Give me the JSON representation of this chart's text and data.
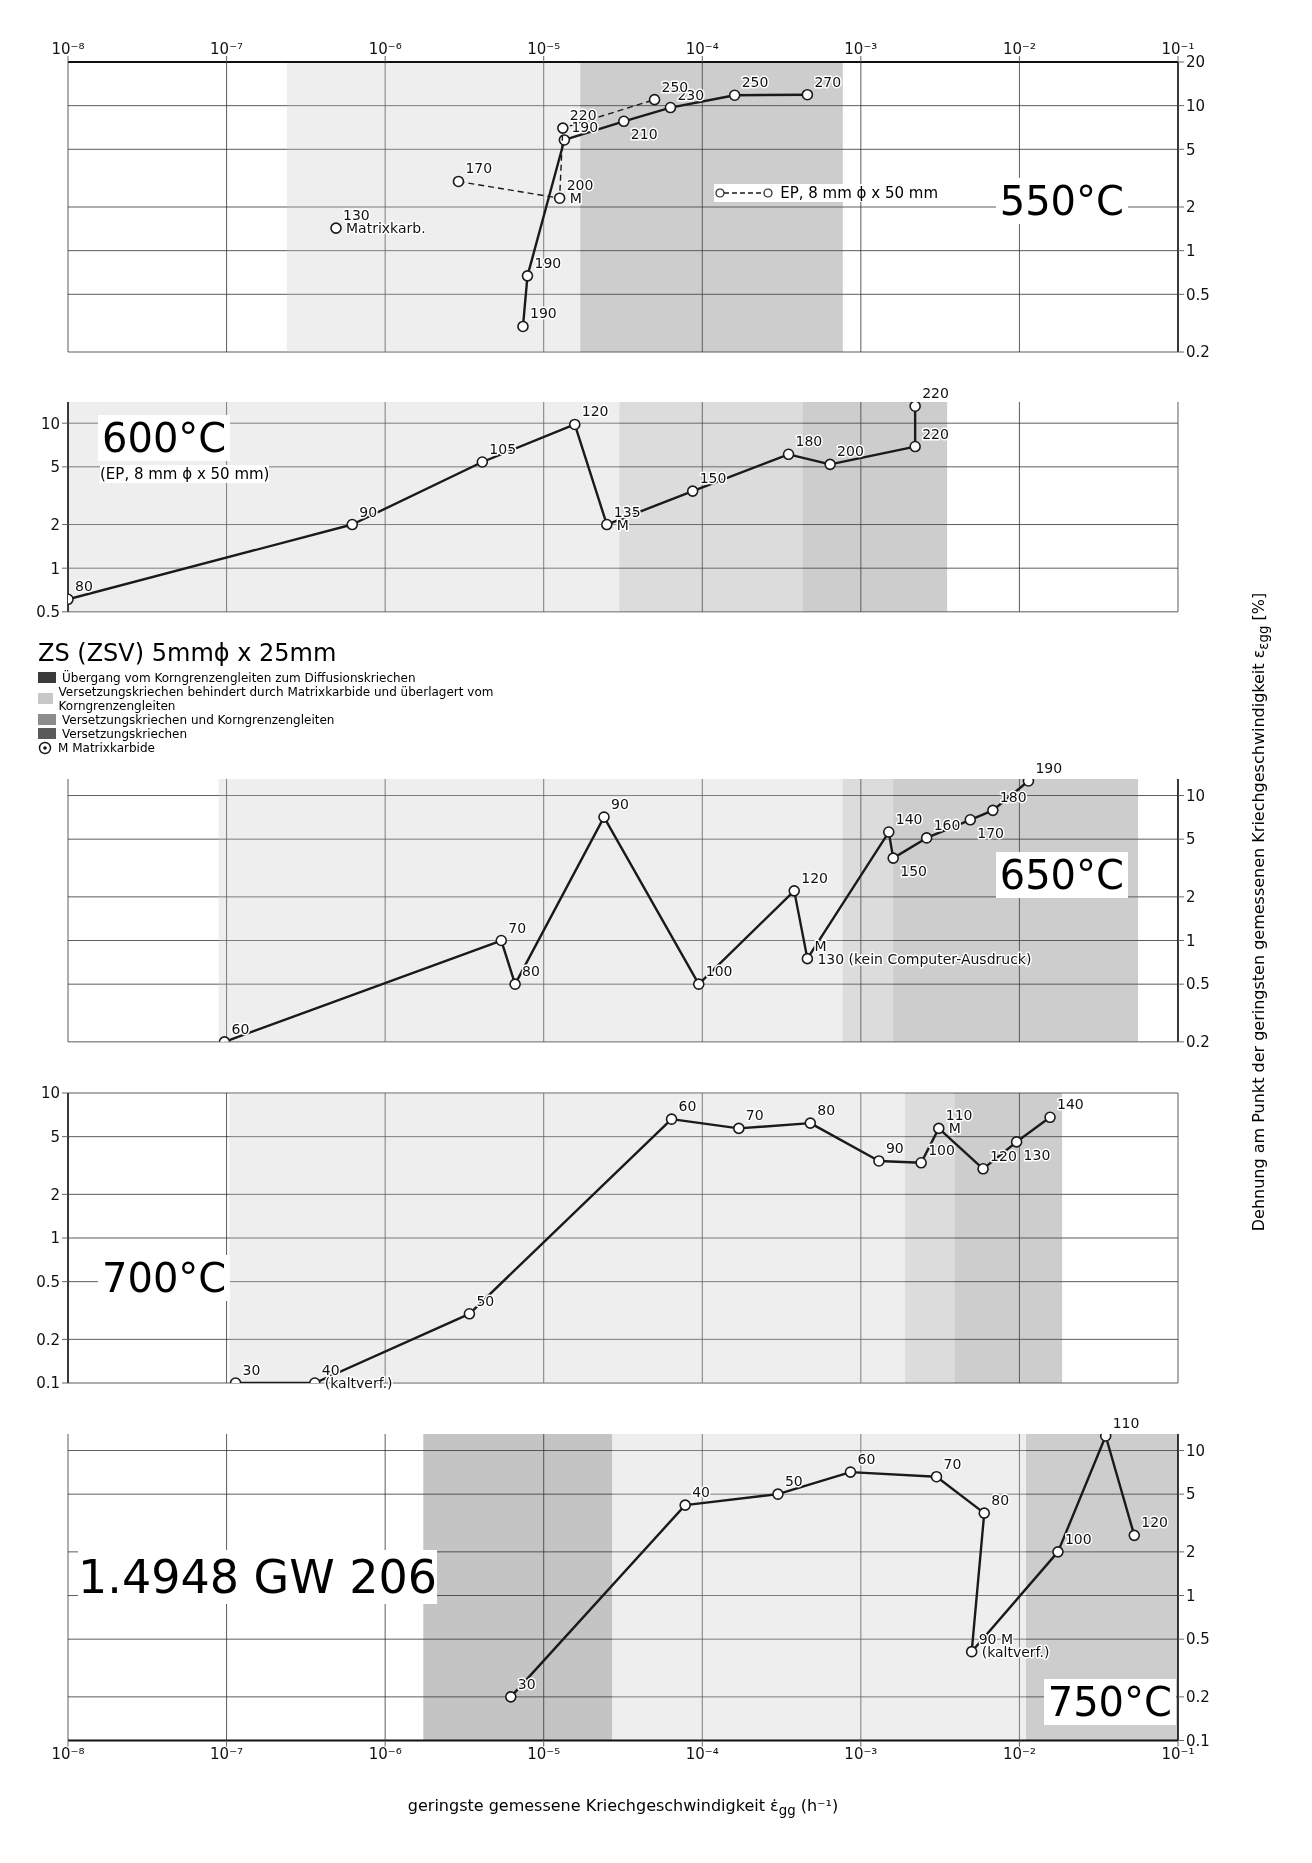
{
  "chart_data": [
    {
      "type": "line",
      "title": "550°C",
      "legend": "right",
      "marker": "circle",
      "grid": true,
      "log": "xy",
      "xlim": [
        1e-08,
        0.1
      ],
      "xticks": [
        {
          "value": 1e-08,
          "label": "10⁻⁸"
        },
        {
          "value": 1e-07,
          "label": "10⁻⁷"
        },
        {
          "value": 1e-06,
          "label": "10⁻⁶"
        },
        {
          "value": 1e-05,
          "label": "10⁻⁵"
        },
        {
          "value": 0.0001,
          "label": "10⁻⁴"
        },
        {
          "value": 0.001,
          "label": "10⁻³"
        },
        {
          "value": 0.01,
          "label": "10⁻²"
        },
        {
          "value": 0.1,
          "label": "10⁻¹"
        }
      ],
      "ylim": [
        0.2,
        20
      ],
      "yticks": [
        0.2,
        0.5,
        1,
        2,
        5,
        10,
        20
      ],
      "series": [
        {
          "color": "#1a1a1a",
          "x": [
            4.9e-07
          ],
          "values": [
            1.43
          ]
        },
        {
          "color": "#1a1a1a",
          "x": [
            7.4e-06,
            7.9e-06,
            1.35e-05,
            3.2e-05,
            6.3e-05,
            0.00016,
            0.00046
          ],
          "values": [
            0.3,
            0.67,
            5.8,
            7.8,
            9.7,
            11.8,
            11.9
          ]
        },
        {
          "name": "EP, 8 mm ϕ x 50 mm",
          "color": "#1a1a1a",
          "line_style": "dashed",
          "x": [
            2.9e-06,
            1.26e-05,
            1.32e-05,
            5e-05
          ],
          "values": [
            3.0,
            2.3,
            7.0,
            11
          ]
        }
      ],
      "bands": [
        {
          "axis": "x",
          "from": 2.4e-07,
          "to": 1.7e-05,
          "color": "#c8c8c8"
        },
        {
          "axis": "x",
          "from": 1.7e-05,
          "to": 0.00077,
          "color": "#5a5a5a"
        }
      ],
      "annotations": [
        {
          "text": "130",
          "x": 4.9e-07,
          "y": 1.43
        },
        {
          "text": "Matrixkarb.",
          "x": 4.9e-07,
          "y": 1.43
        },
        {
          "text": "190",
          "x": 7.4e-06,
          "y": 0.3
        },
        {
          "text": "190",
          "x": 7.9e-06,
          "y": 0.67
        },
        {
          "text": "190",
          "x": 1.35e-05,
          "y": 5.8
        },
        {
          "text": "210",
          "x": 3.2e-05,
          "y": 7.8
        },
        {
          "text": "230",
          "x": 6.3e-05,
          "y": 9.7
        },
        {
          "text": "250",
          "x": 0.00016,
          "y": 11.8
        },
        {
          "text": "270",
          "x": 0.00046,
          "y": 11.9
        },
        {
          "text": "170",
          "x": 2.9e-06,
          "y": 3.0
        },
        {
          "text": "200",
          "x": 1.26e-05,
          "y": 2.3
        },
        {
          "text": "M",
          "x": 1.26e-05,
          "y": 2.3
        },
        {
          "text": "220",
          "x": 1.32e-05,
          "y": 7.0
        },
        {
          "text": "250",
          "x": 5e-05,
          "y": 11
        }
      ]
    },
    {
      "type": "line",
      "title": "600°C",
      "marker": "circle",
      "grid": true,
      "log": "xy",
      "tick_labels": "y",
      "xlim": [
        1e-08,
        0.1
      ],
      "xticks": [
        1e-08,
        1e-07,
        1e-06,
        1e-05,
        0.0001,
        0.001,
        0.01,
        0.1
      ],
      "ylim": [
        0.5,
        14
      ],
      "yticks": [
        0.5,
        1,
        2,
        5,
        10
      ],
      "series": [
        {
          "color": "#1a1a1a",
          "x": [
            1e-08,
            6.2e-07,
            4.1e-06,
            1.57e-05,
            2.5e-05,
            8.7e-05,
            0.00035,
            0.00064,
            0.0022,
            0.0022
          ],
          "values": [
            0.61,
            2.0,
            5.4,
            9.8,
            2.0,
            3.4,
            6.1,
            5.2,
            6.9,
            13.1
          ]
        }
      ],
      "bands": [
        {
          "axis": "x",
          "from": 1e-08,
          "to": 3e-05,
          "color": "#c8c8c8"
        },
        {
          "axis": "x",
          "from": 3e-05,
          "to": 0.00043,
          "color": "#8c8c8c"
        },
        {
          "axis": "x",
          "from": 0.00043,
          "to": 0.0035,
          "color": "#5a5a5a"
        }
      ],
      "annotations": [
        "(EP, 8 mm ϕ x 50 mm)",
        {
          "text": "80",
          "x": 1e-08,
          "y": 0.61
        },
        {
          "text": "90",
          "x": 6.2e-07,
          "y": 2.0
        },
        {
          "text": "105",
          "x": 4.1e-06,
          "y": 5.4
        },
        {
          "text": "120",
          "x": 1.57e-05,
          "y": 9.8
        },
        {
          "text": "135",
          "x": 2.5e-05,
          "y": 2.0
        },
        {
          "text": "M",
          "x": 2.5e-05,
          "y": 2.0
        },
        {
          "text": "150",
          "x": 8.7e-05,
          "y": 3.4
        },
        {
          "text": "180",
          "x": 0.00035,
          "y": 6.1
        },
        {
          "text": "200",
          "x": 0.00064,
          "y": 5.2
        },
        {
          "text": "220",
          "x": 0.0022,
          "y": 6.9
        },
        {
          "text": "220",
          "x": 0.0022,
          "y": 13.1
        }
      ]
    },
    {
      "type": "line",
      "title": "650°C",
      "marker": "circle",
      "grid": true,
      "log": "xy",
      "tick_labels": "y",
      "xlim": [
        1e-08,
        0.1
      ],
      "xticks": [
        1e-08,
        1e-07,
        1e-06,
        1e-05,
        0.0001,
        0.001,
        0.01,
        0.1
      ],
      "ylim": [
        0.2,
        13
      ],
      "yticks": [
        0.2,
        0.5,
        1,
        2,
        5,
        10
      ],
      "ylabel": "Dehnung am Punkt der geringsten gemessenen Kriechgeschwindigkeit ε$_{εgg}$ [%]",
      "series": [
        {
          "color": "#1a1a1a",
          "x": [
            9.7e-08,
            5.4e-06,
            6.6e-06,
            2.4e-05,
            9.5e-05,
            0.00038,
            0.00046,
            0.0015,
            0.0016,
            0.0026,
            0.0049,
            0.0068,
            0.0114
          ],
          "values": [
            0.2,
            1.0,
            0.5,
            7.1,
            0.5,
            2.2,
            0.75,
            5.6,
            3.7,
            5.1,
            6.8,
            7.9,
            12.6
          ]
        }
      ],
      "bands": [
        {
          "axis": "x",
          "from": 8.9e-08,
          "to": 0.00077,
          "color": "#c8c8c8"
        },
        {
          "axis": "x",
          "from": 0.00077,
          "to": 0.0016,
          "color": "#8c8c8c"
        },
        {
          "axis": "x",
          "from": 0.0016,
          "to": 0.056,
          "color": "#5a5a5a"
        }
      ],
      "annotations": [
        "ZS (ZSV) 5mmϕ x 25mm",
        "Übergang vom Korngrenzengleiten zum Diffusionskriechen",
        "Versetzungskriechen behindert durch Matrixkarbide und überlagert vom Korngrenzengleiten",
        "Versetzungskriechen und Korngrenzengleiten",
        "Versetzungskriechen",
        "M Matrixkarbide",
        {
          "text": "60",
          "x": 9.7e-08,
          "y": 0.2
        },
        {
          "text": "70",
          "x": 5.4e-06,
          "y": 1.0
        },
        {
          "text": "80",
          "x": 6.6e-06,
          "y": 0.5
        },
        {
          "text": "90",
          "x": 2.4e-05,
          "y": 7.1
        },
        {
          "text": "100",
          "x": 9.5e-05,
          "y": 0.5
        },
        {
          "text": "120",
          "x": 0.00038,
          "y": 2.2
        },
        {
          "text": "M",
          "x": 0.00046,
          "y": 0.75
        },
        {
          "text": "130 (kein Computer-Ausdruck)",
          "x": 0.00046,
          "y": 0.75
        },
        {
          "text": "140",
          "x": 0.0015,
          "y": 5.6
        },
        {
          "text": "150",
          "x": 0.0016,
          "y": 3.7
        },
        {
          "text": "160",
          "x": 0.0026,
          "y": 5.1
        },
        {
          "text": "170",
          "x": 0.0049,
          "y": 6.8
        },
        {
          "text": "180",
          "x": 0.0068,
          "y": 7.9
        },
        {
          "text": "190",
          "x": 0.0114,
          "y": 12.6
        }
      ]
    },
    {
      "type": "line",
      "title": "700°C",
      "marker": "circle",
      "grid": true,
      "log": "xy",
      "tick_labels": "y",
      "xlim": [
        1e-08,
        0.1
      ],
      "xticks": [
        1e-08,
        1e-07,
        1e-06,
        1e-05,
        0.0001,
        0.001,
        0.01,
        0.1
      ],
      "ylim": [
        0.1,
        10
      ],
      "yticks": [
        0.1,
        0.2,
        0.5,
        1,
        2,
        5,
        10
      ],
      "series": [
        {
          "color": "#1a1a1a",
          "x": [
            1.14e-07,
            3.6e-07,
            3.4e-06,
            6.4e-05,
            0.00017,
            0.00048,
            0.0013,
            0.0024,
            0.0031,
            0.0059,
            0.0096,
            0.0156
          ],
          "values": [
            0.1,
            0.1,
            0.3,
            6.6,
            5.7,
            6.2,
            3.4,
            3.3,
            5.7,
            3.0,
            4.6,
            6.8
          ]
        }
      ],
      "bands": [
        {
          "axis": "x",
          "from": 1.04e-07,
          "to": 0.0019,
          "color": "#c8c8c8"
        },
        {
          "axis": "x",
          "from": 0.0019,
          "to": 0.0039,
          "color": "#8c8c8c"
        },
        {
          "axis": "x",
          "from": 0.0039,
          "to": 0.0186,
          "color": "#5a5a5a"
        }
      ],
      "annotations": [
        {
          "text": "30",
          "x": 1.14e-07,
          "y": 0.1
        },
        {
          "text": "40",
          "x": 3.6e-07,
          "y": 0.1
        },
        {
          "text": "(kaltverf.)",
          "x": 3.6e-07,
          "y": 0.1
        },
        {
          "text": "50",
          "x": 3.4e-06,
          "y": 0.3
        },
        {
          "text": "60",
          "x": 6.4e-05,
          "y": 6.6
        },
        {
          "text": "70",
          "x": 0.00017,
          "y": 5.7
        },
        {
          "text": "80",
          "x": 0.00048,
          "y": 6.2
        },
        {
          "text": "90",
          "x": 0.0013,
          "y": 3.4
        },
        {
          "text": "100",
          "x": 0.0024,
          "y": 3.3
        },
        {
          "text": "110",
          "x": 0.0031,
          "y": 5.7
        },
        {
          "text": "M",
          "x": 0.0031,
          "y": 5.7
        },
        {
          "text": "120",
          "x": 0.0059,
          "y": 3.0
        },
        {
          "text": "130",
          "x": 0.0096,
          "y": 4.6
        },
        {
          "text": "140",
          "x": 0.0156,
          "y": 6.8
        }
      ]
    },
    {
      "type": "line",
      "title": "750°C",
      "marker": "circle",
      "grid": true,
      "log": "xy",
      "xlim": [
        1e-08,
        0.1
      ],
      "xticks": [
        {
          "value": 1e-08,
          "label": "10⁻⁸"
        },
        {
          "value": 1e-07,
          "label": "10⁻⁷"
        },
        {
          "value": 1e-06,
          "label": "10⁻⁶"
        },
        {
          "value": 1e-05,
          "label": "10⁻⁵"
        },
        {
          "value": 0.0001,
          "label": "10⁻⁴"
        },
        {
          "value": 0.001,
          "label": "10⁻³"
        },
        {
          "value": 0.01,
          "label": "10⁻²"
        },
        {
          "value": 0.1,
          "label": "10⁻¹"
        }
      ],
      "ylim": [
        0.1,
        13
      ],
      "yticks": [
        0.1,
        0.2,
        0.5,
        1,
        2,
        5,
        10
      ],
      "xlabel": "geringste gemessene Kriechgeschwindigkeit ε̇$_{gg}$ (h⁻¹)",
      "series": [
        {
          "color": "#1a1a1a",
          "x": [
            6.2e-06,
            7.8e-05,
            0.0003,
            0.00086,
            0.003,
            0.006,
            0.005,
            0.0175,
            0.035,
            0.053
          ],
          "values": [
            0.2,
            4.2,
            5.0,
            7.1,
            6.6,
            3.7,
            0.41,
            2.0,
            12.6,
            2.6
          ]
        }
      ],
      "bands": [
        {
          "axis": "x",
          "from": 1.74e-06,
          "to": 2.7e-05,
          "color": "#3a3a3a"
        },
        {
          "axis": "x",
          "from": 2.7e-05,
          "to": 0.011,
          "color": "#c8c8c8"
        },
        {
          "axis": "x",
          "from": 0.011,
          "to": 0.1,
          "color": "#5a5a5a"
        }
      ],
      "annotations": [
        "1.4948 GW 206",
        {
          "text": "30",
          "x": 6.2e-06,
          "y": 0.2
        },
        {
          "text": "40",
          "x": 7.8e-05,
          "y": 4.2
        },
        {
          "text": "50",
          "x": 0.0003,
          "y": 5.0
        },
        {
          "text": "60",
          "x": 0.00086,
          "y": 7.1
        },
        {
          "text": "70",
          "x": 0.003,
          "y": 6.6
        },
        {
          "text": "80",
          "x": 0.006,
          "y": 3.7
        },
        {
          "text": "90 M",
          "x": 0.005,
          "y": 0.41
        },
        {
          "text": "(kaltverf.)",
          "x": 0.005,
          "y": 0.41
        },
        {
          "text": "100",
          "x": 0.0175,
          "y": 2.0
        },
        {
          "text": "110",
          "x": 0.035,
          "y": 12.6
        },
        {
          "text": "120",
          "x": 0.053,
          "y": 2.6
        }
      ]
    }
  ]
}
